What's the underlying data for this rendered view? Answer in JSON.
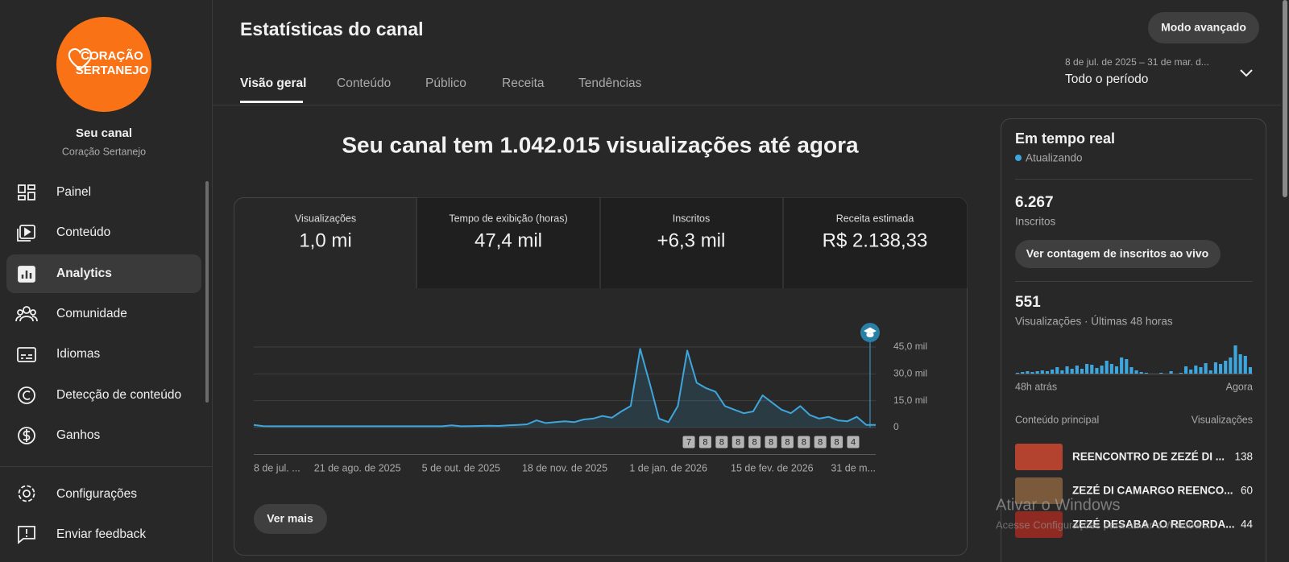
{
  "sidebar": {
    "logo": [
      "CORAÇÃO",
      "SERTANEJO"
    ],
    "title": "Seu canal",
    "subtitle": "Coração Sertanejo",
    "nav": [
      "Painel",
      "Conteúdo",
      "Analytics",
      "Comunidade",
      "Idiomas",
      "Detecção de conteúdo",
      "Ganhos"
    ],
    "bottom": [
      "Configurações",
      "Enviar feedback"
    ]
  },
  "header": {
    "title": "Estatísticas do canal",
    "tabs": [
      "Visão geral",
      "Conteúdo",
      "Público",
      "Receita",
      "Tendências"
    ],
    "button": "Modo avançado",
    "date_range": "8 de jul. de 2025 – 31 de mar. d...",
    "period": "Todo o período"
  },
  "headline": "Seu canal tem 1.042.015 visualizações até agora",
  "metrics": [
    {
      "label": "Visualizações",
      "value": "1,0 mi"
    },
    {
      "label": "Tempo de exibição (horas)",
      "value": "47,4 mil"
    },
    {
      "label": "Inscritos",
      "value": "+6,3 mil"
    },
    {
      "label": "Receita estimada",
      "value": "R$ 2.138,33"
    }
  ],
  "main_chart": {
    "type": "line",
    "color": "#3ea6dc",
    "values": [
      1500,
      800,
      700,
      700,
      700,
      700,
      700,
      700,
      700,
      700,
      700,
      700,
      700,
      700,
      700,
      700,
      700,
      700,
      700,
      700,
      700,
      1200,
      700,
      800,
      900,
      1000,
      900,
      1200,
      1500,
      1800,
      4000,
      2500,
      3000,
      3500,
      3000,
      4500,
      5000,
      6500,
      5500,
      9000,
      12000,
      44000,
      25000,
      5000,
      3000,
      12000,
      43000,
      25000,
      22000,
      20000,
      12000,
      10000,
      8000,
      9000,
      18000,
      14000,
      10000,
      8000,
      12000,
      7000,
      5000,
      6000,
      4000,
      3500,
      6000,
      1500,
      1500
    ],
    "ylim": [
      0,
      45000
    ],
    "yticks": [
      {
        "value": 0,
        "label": "0"
      },
      {
        "value": 15000,
        "label": "15,0 mil"
      },
      {
        "value": 30000,
        "label": "30,0 mil"
      },
      {
        "value": 45000,
        "label": "45,0 mil"
      }
    ],
    "xticks": [
      {
        "value": 0,
        "label": "8 de jul. ..."
      },
      {
        "value": 11,
        "label": "21 de ago. de 2025"
      },
      {
        "value": 22,
        "label": "5 de out. de 2025"
      },
      {
        "value": 33,
        "label": "18 de nov. de 2025"
      },
      {
        "value": 44,
        "label": "1 de jan. de 2026"
      },
      {
        "value": 55,
        "label": "15 de fev. de 2026"
      },
      {
        "value": 66,
        "label": "31 de m..."
      }
    ],
    "grid": true,
    "badges": [
      7,
      8,
      8,
      8,
      8,
      8,
      8,
      8,
      8,
      8,
      4
    ]
  },
  "more_button": "Ver mais",
  "realtime": {
    "title": "Em tempo real",
    "status": "Atualizando",
    "subscribers": "6.267",
    "subscribers_label": "Inscritos",
    "button": "Ver contagem de inscritos ao vivo",
    "views": "551",
    "views_label": "Visualizações · Últimas 48 horas",
    "chart": {
      "type": "bar",
      "color": "#3ea6dc",
      "values": [
        1,
        2,
        3,
        2,
        3,
        4,
        3,
        5,
        8,
        4,
        9,
        6,
        10,
        6,
        12,
        11,
        7,
        10,
        16,
        12,
        9,
        20,
        18,
        8,
        4,
        2,
        1,
        0,
        0,
        1,
        0,
        3,
        0,
        1,
        9,
        5,
        10,
        8,
        13,
        4,
        14,
        12,
        16,
        20,
        35,
        24,
        22,
        8
      ]
    },
    "start_label": "48h atrás",
    "end_label": "Agora",
    "content_header": "Conteúdo principal",
    "views_header": "Visualizações",
    "top_content": [
      {
        "title": "REENCONTRO DE ZEZÉ DI ...",
        "views": 138
      },
      {
        "title": "ZEZÉ DI CAMARGO REENCO...",
        "views": 60
      },
      {
        "title": "ZEZÉ DESABA AO RECORDA...",
        "views": 44
      }
    ]
  },
  "watermark": {
    "title": "Ativar o Windows",
    "text": "Acesse Configurações para ativar o Windows."
  }
}
